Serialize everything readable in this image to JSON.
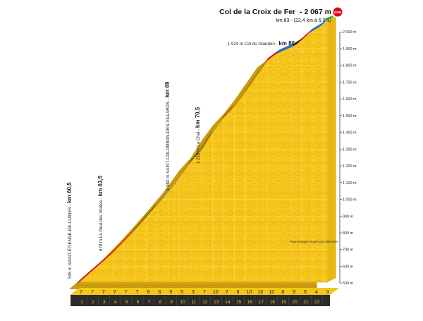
{
  "summit": {
    "title": "Col de la Croix de Fer",
    "altitude": "- 2 067 m",
    "km_line": "km 83 - (22,4 km à 6,9%)",
    "badge": "GPM",
    "badge_color": "#e2001a"
  },
  "legend_note": "Pourcentage moyen par kilomètre",
  "colors": {
    "profile_fill": "#f5c51a",
    "grade_low": "#2a6fc0",
    "grade_mid": "#1a1a1a",
    "grade_high": "#e2001a",
    "summit_line": "#3fae2a",
    "km_bar": "#f5c51a",
    "km_bar_side": "#2b2b2b"
  },
  "labels": [
    {
      "altitude": "505 m",
      "name": "SAINT-ÉTIENNE-DE-CUINES",
      "km": "km 60,5"
    },
    {
      "altitude": "678 m",
      "name": "Le Pied des Voûtes",
      "km": "km 63,5"
    },
    {
      "altitude": "1 082 m",
      "name": "SAINT-COLOMBAN-DES-VILLARDS",
      "km": "km 69"
    },
    {
      "altitude": "1 218 m",
      "name": "La Chal",
      "km": "km 70,5"
    },
    {
      "altitude": "1 924 m",
      "name": "Col du Glandon",
      "km": "km 80"
    }
  ],
  "chart_data": {
    "type": "area",
    "title": "Col de la Croix de Fer - 2 067 m",
    "y_axis_unit": "m",
    "ylim": [
      500,
      2000
    ],
    "y_ticks": [
      500,
      600,
      700,
      800,
      900,
      1000,
      1100,
      1200,
      1300,
      1400,
      1500,
      1600,
      1700,
      1800,
      1900,
      2000
    ],
    "y_tick_labels": [
      "500 m",
      "600 m",
      "700 m",
      "800 m",
      "900 m",
      "1 000 m",
      "1 100 m",
      "1 200 m",
      "1 300 m",
      "1 400 m",
      "1 500 m",
      "1 600 m",
      "1 700 m",
      "1 800 m",
      "1 900 m",
      "2 000 m"
    ],
    "km_markers": [
      "1",
      "2",
      "3",
      "4",
      "5",
      "6",
      "7",
      "8",
      "9",
      "10",
      "11",
      "12",
      "13",
      "14",
      "15",
      "16",
      "17",
      "18",
      "19",
      "20",
      "21",
      "22"
    ],
    "km_grades": [
      7,
      7,
      7,
      7,
      7,
      7,
      8,
      8,
      9,
      5,
      3,
      7,
      10,
      7,
      8,
      10,
      10,
      10,
      8,
      9,
      5,
      4,
      3
    ],
    "profile": [
      {
        "km": 0,
        "alt": 505
      },
      {
        "km": 3,
        "alt": 678
      },
      {
        "km": 5,
        "alt": 815
      },
      {
        "km": 7,
        "alt": 965
      },
      {
        "km": 8.5,
        "alt": 1082
      },
      {
        "km": 10,
        "alt": 1218
      },
      {
        "km": 11,
        "alt": 1290
      },
      {
        "km": 12,
        "alt": 1395
      },
      {
        "km": 13,
        "alt": 1485
      },
      {
        "km": 14,
        "alt": 1555
      },
      {
        "km": 15,
        "alt": 1640
      },
      {
        "km": 16,
        "alt": 1735
      },
      {
        "km": 17,
        "alt": 1830
      },
      {
        "km": 18,
        "alt": 1880
      },
      {
        "km": 19.5,
        "alt": 1924
      },
      {
        "km": 20,
        "alt": 1945
      },
      {
        "km": 21,
        "alt": 2005
      },
      {
        "km": 22,
        "alt": 2045
      },
      {
        "km": 22.4,
        "alt": 2067
      }
    ],
    "segments": [
      {
        "from": 0,
        "to": 5,
        "grade": "high"
      },
      {
        "from": 5,
        "to": 7,
        "grade": "mid"
      },
      {
        "from": 7,
        "to": 10,
        "grade": "low"
      },
      {
        "from": 10,
        "to": 12,
        "grade": "mid"
      },
      {
        "from": 12,
        "to": 14,
        "grade": "high"
      },
      {
        "from": 14,
        "to": 17,
        "grade": "mid"
      },
      {
        "from": 17,
        "to": 18,
        "grade": "high"
      },
      {
        "from": 18,
        "to": 19.5,
        "grade": "low"
      },
      {
        "from": 19.5,
        "to": 20,
        "grade": "mid"
      },
      {
        "from": 20,
        "to": 21,
        "grade": "high"
      },
      {
        "from": 21,
        "to": 22.4,
        "grade": "low"
      }
    ]
  }
}
